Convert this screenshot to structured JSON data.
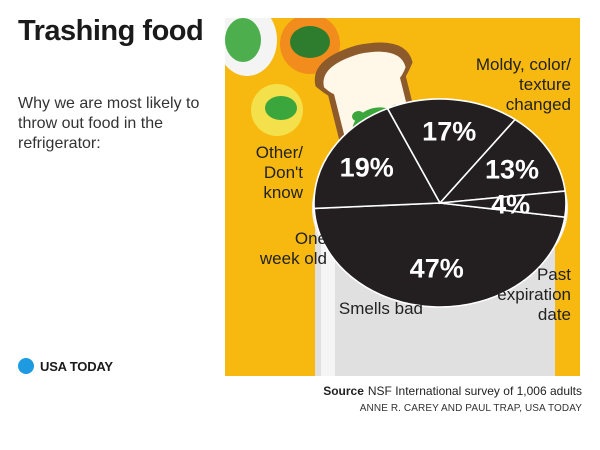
{
  "header": {
    "title": "Trashing food",
    "subtitle": "Why we are most likely to throw out food in the refrigerator:"
  },
  "brand": {
    "name": "USA TODAY",
    "dot_color": "#1E9BE0"
  },
  "footer": {
    "source_label": "Source",
    "source_text": "NSF International survey of 1,006 adults",
    "credit": "ANNE R. CAREY AND PAUL TRAP, USA TODAY"
  },
  "colors": {
    "background": "#F7B90F",
    "pie": "#231F20",
    "mold": "#3BA63B",
    "plate": "#E8E8E8"
  },
  "chart_data": {
    "type": "pie",
    "slices": [
      {
        "label": "Moldy, color/ texture changed",
        "label_lines": [
          "Moldy, color/",
          "texture",
          "changed"
        ],
        "value": 47,
        "display": "47%"
      },
      {
        "label": "Past expiration date",
        "label_lines": [
          "Past",
          "expiration",
          "date"
        ],
        "value": 19,
        "display": "19%"
      },
      {
        "label": "Smells bad",
        "label_lines": [
          "Smells bad"
        ],
        "value": 17,
        "display": "17%"
      },
      {
        "label": "One week old",
        "label_lines": [
          "One",
          "week old"
        ],
        "value": 13,
        "display": "13%"
      },
      {
        "label": "Other/ Don't know",
        "label_lines": [
          "Other/",
          "Don't",
          "know"
        ],
        "value": 4,
        "display": "4%"
      }
    ]
  }
}
